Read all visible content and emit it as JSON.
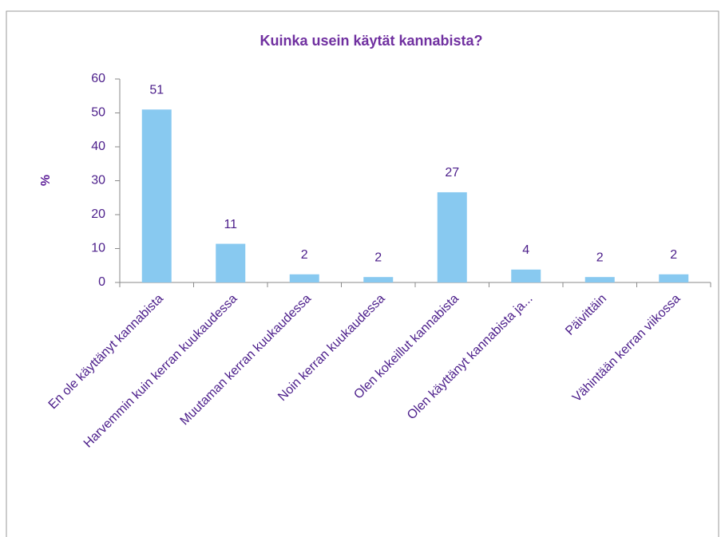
{
  "chart_data": {
    "type": "bar",
    "title": "Kuinka usein käytät kannabista?",
    "y_label": "%",
    "categories": [
      "En ole käyttänyt kannabista",
      "Harvemmin kuin kerran kuukaudessa",
      "Muutaman kerran kuukaudessa",
      "Noin kerran kuukaudessa",
      "Olen kokeillut kannabista",
      "Olen käyttänyt kannabista ja...",
      "Päivittäin",
      "Vähintään kerran viikossa"
    ],
    "values": [
      51,
      11.4,
      2.4,
      1.6,
      26.6,
      3.8,
      1.6,
      2.4
    ],
    "value_labels": [
      "51",
      "11",
      "2",
      "2",
      "27",
      "4",
      "2",
      "2"
    ],
    "color": "#88c9f0",
    "ylim": [
      0,
      60
    ],
    "yticks": [
      0,
      10,
      20,
      30,
      40,
      50,
      60
    ],
    "grid": false
  }
}
